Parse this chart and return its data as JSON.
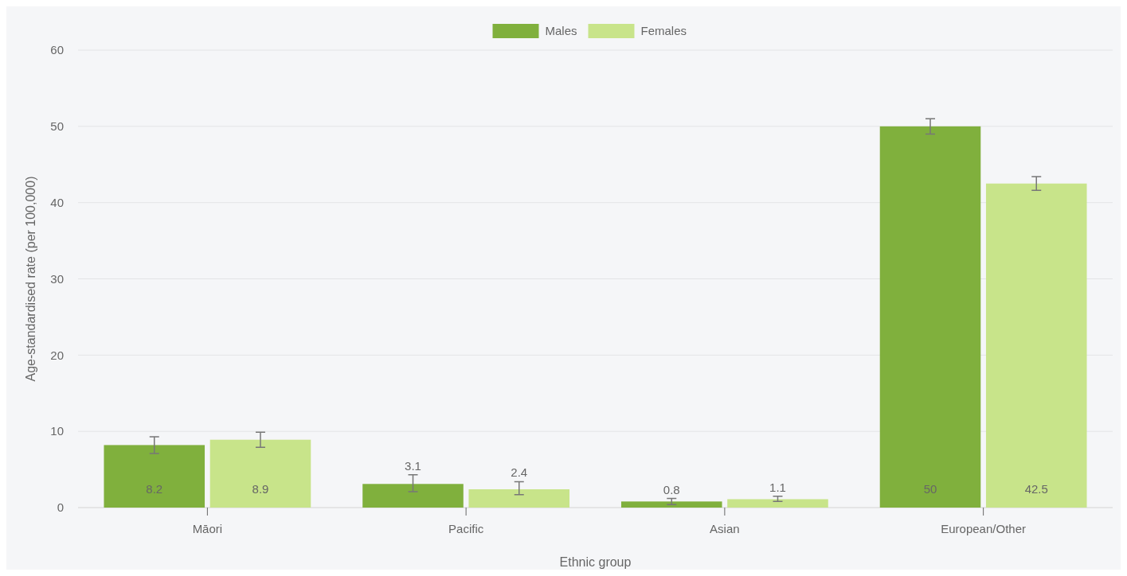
{
  "chart_data": {
    "type": "bar",
    "xlabel": "Ethnic group",
    "ylabel": "Age-standardised rate (per 100,000)",
    "categories": [
      "Māori",
      "Pacific",
      "Asian",
      "European/Other"
    ],
    "series": [
      {
        "name": "Males",
        "color": "#80b03d",
        "values": [
          8.2,
          3.1,
          0.8,
          50
        ],
        "errors": [
          [
            7.1,
            9.3
          ],
          [
            2.1,
            4.3
          ],
          [
            0.4,
            1.2
          ],
          [
            49,
            51
          ]
        ]
      },
      {
        "name": "Females",
        "color": "#c8e48a",
        "values": [
          8.9,
          2.4,
          1.1,
          42.5
        ],
        "errors": [
          [
            7.9,
            9.9
          ],
          [
            1.7,
            3.4
          ],
          [
            0.8,
            1.5
          ],
          [
            41.6,
            43.4
          ]
        ]
      }
    ],
    "ylim": [
      0,
      60
    ],
    "yticks": [
      0,
      10,
      20,
      30,
      40,
      50,
      60
    ],
    "grid": "y",
    "legend": "top",
    "data_labels": true
  }
}
